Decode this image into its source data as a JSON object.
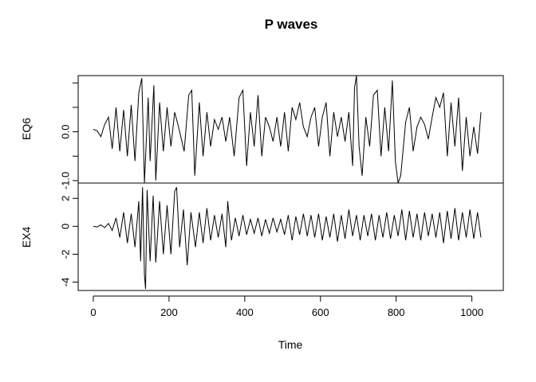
{
  "chart_data": [
    {
      "type": "line",
      "panel": "top",
      "title": "P waves",
      "ylabel": "EQ6",
      "xlim": [
        0,
        1024
      ],
      "ylim": [
        -1.05,
        1.15
      ],
      "yticks": [
        -1.0,
        -0.5,
        0.0,
        0.5,
        1.0
      ],
      "ytick_labels": [
        "-1.0",
        "",
        "0.0",
        "",
        ""
      ],
      "grid": false,
      "series": [
        {
          "color": "#000000",
          "points": [
            [
              0,
              0.05
            ],
            [
              10,
              0.02
            ],
            [
              20,
              -0.1
            ],
            [
              30,
              0.15
            ],
            [
              40,
              0.3
            ],
            [
              50,
              -0.35
            ],
            [
              60,
              0.5
            ],
            [
              70,
              -0.4
            ],
            [
              80,
              0.45
            ],
            [
              90,
              -0.5
            ],
            [
              100,
              0.55
            ],
            [
              110,
              -0.6
            ],
            [
              120,
              0.8
            ],
            [
              128,
              1.1
            ],
            [
              135,
              -1.05
            ],
            [
              145,
              0.7
            ],
            [
              150,
              -0.6
            ],
            [
              160,
              0.95
            ],
            [
              165,
              -1.0
            ],
            [
              175,
              0.6
            ],
            [
              185,
              -0.4
            ],
            [
              195,
              0.5
            ],
            [
              205,
              -0.3
            ],
            [
              215,
              0.4
            ],
            [
              225,
              0.1
            ],
            [
              240,
              -0.4
            ],
            [
              252,
              0.75
            ],
            [
              260,
              0.85
            ],
            [
              268,
              -0.9
            ],
            [
              280,
              0.6
            ],
            [
              290,
              -0.5
            ],
            [
              300,
              0.4
            ],
            [
              310,
              -0.3
            ],
            [
              320,
              0.25
            ],
            [
              330,
              0.05
            ],
            [
              340,
              0.3
            ],
            [
              350,
              -0.2
            ],
            [
              360,
              0.3
            ],
            [
              372,
              -0.5
            ],
            [
              385,
              0.7
            ],
            [
              395,
              0.85
            ],
            [
              405,
              -0.7
            ],
            [
              415,
              0.4
            ],
            [
              425,
              -0.3
            ],
            [
              435,
              0.75
            ],
            [
              445,
              -0.5
            ],
            [
              455,
              0.3
            ],
            [
              465,
              0.1
            ],
            [
              475,
              -0.2
            ],
            [
              485,
              0.3
            ],
            [
              495,
              -0.3
            ],
            [
              505,
              0.4
            ],
            [
              515,
              -0.4
            ],
            [
              525,
              0.5
            ],
            [
              535,
              0.25
            ],
            [
              545,
              0.6
            ],
            [
              555,
              0.1
            ],
            [
              565,
              -0.1
            ],
            [
              575,
              0.3
            ],
            [
              585,
              0.5
            ],
            [
              595,
              -0.3
            ],
            [
              605,
              0.3
            ],
            [
              615,
              0.6
            ],
            [
              625,
              -0.5
            ],
            [
              635,
              0.4
            ],
            [
              645,
              -0.1
            ],
            [
              655,
              0.3
            ],
            [
              665,
              -0.2
            ],
            [
              675,
              0.4
            ],
            [
              685,
              -0.7
            ],
            [
              690,
              0.9
            ],
            [
              695,
              1.15
            ],
            [
              702,
              -0.3
            ],
            [
              710,
              -0.9
            ],
            [
              720,
              0.3
            ],
            [
              730,
              -0.3
            ],
            [
              740,
              0.75
            ],
            [
              750,
              0.85
            ],
            [
              760,
              -0.5
            ],
            [
              770,
              0.5
            ],
            [
              780,
              -0.4
            ],
            [
              790,
              1.05
            ],
            [
              798,
              -0.6
            ],
            [
              805,
              -1.05
            ],
            [
              812,
              -0.9
            ],
            [
              825,
              0.2
            ],
            [
              835,
              0.5
            ],
            [
              845,
              -0.4
            ],
            [
              855,
              0.1
            ],
            [
              865,
              0.3
            ],
            [
              875,
              0.15
            ],
            [
              885,
              -0.15
            ],
            [
              895,
              0.3
            ],
            [
              905,
              0.7
            ],
            [
              915,
              0.5
            ],
            [
              925,
              0.8
            ],
            [
              935,
              -0.5
            ],
            [
              945,
              0.6
            ],
            [
              955,
              -0.3
            ],
            [
              965,
              0.7
            ],
            [
              975,
              -0.8
            ],
            [
              985,
              0.3
            ],
            [
              995,
              -0.5
            ],
            [
              1005,
              0.1
            ],
            [
              1015,
              -0.45
            ],
            [
              1024,
              0.4
            ]
          ]
        }
      ]
    },
    {
      "type": "line",
      "panel": "bottom",
      "xlabel": "Time",
      "ylabel": "EX4",
      "xlim": [
        0,
        1024
      ],
      "ylim": [
        -4.6,
        3.1
      ],
      "xticks": [
        0,
        200,
        400,
        600,
        800,
        1000
      ],
      "xtick_labels": [
        "0",
        "200",
        "400",
        "600",
        "800",
        "1000"
      ],
      "yticks": [
        -4,
        -2,
        0,
        2
      ],
      "ytick_labels": [
        "-4",
        "-2",
        "0",
        "2"
      ],
      "grid": false,
      "series": [
        {
          "color": "#000000",
          "points": [
            [
              0,
              0.0
            ],
            [
              10,
              -0.05
            ],
            [
              20,
              0.1
            ],
            [
              30,
              -0.1
            ],
            [
              40,
              0.2
            ],
            [
              50,
              -0.3
            ],
            [
              60,
              0.6
            ],
            [
              70,
              -0.8
            ],
            [
              80,
              1.0
            ],
            [
              90,
              -1.2
            ],
            [
              100,
              0.9
            ],
            [
              110,
              -1.5
            ],
            [
              120,
              1.8
            ],
            [
              125,
              -2.5
            ],
            [
              130,
              2.8
            ],
            [
              135,
              -3.5
            ],
            [
              138,
              -4.5
            ],
            [
              142,
              2.6
            ],
            [
              150,
              -2.5
            ],
            [
              158,
              2.2
            ],
            [
              165,
              -2.6
            ],
            [
              175,
              1.8
            ],
            [
              185,
              -2.0
            ],
            [
              195,
              1.5
            ],
            [
              205,
              -2.0
            ],
            [
              215,
              2.5
            ],
            [
              220,
              2.8
            ],
            [
              228,
              -1.5
            ],
            [
              238,
              1.2
            ],
            [
              248,
              -2.8
            ],
            [
              258,
              1.0
            ],
            [
              270,
              -1.5
            ],
            [
              280,
              1.0
            ],
            [
              290,
              -1.2
            ],
            [
              300,
              1.3
            ],
            [
              310,
              -1.0
            ],
            [
              320,
              0.8
            ],
            [
              330,
              -0.8
            ],
            [
              340,
              0.9
            ],
            [
              350,
              -1.5
            ],
            [
              355,
              1.8
            ],
            [
              365,
              -1.0
            ],
            [
              375,
              0.6
            ],
            [
              385,
              -0.7
            ],
            [
              395,
              0.8
            ],
            [
              405,
              -0.6
            ],
            [
              415,
              0.5
            ],
            [
              425,
              -0.5
            ],
            [
              435,
              0.6
            ],
            [
              445,
              -0.7
            ],
            [
              455,
              0.5
            ],
            [
              465,
              -0.5
            ],
            [
              475,
              0.6
            ],
            [
              485,
              -0.4
            ],
            [
              495,
              0.5
            ],
            [
              505,
              -0.6
            ],
            [
              515,
              0.8
            ],
            [
              525,
              -1.0
            ],
            [
              535,
              0.7
            ],
            [
              545,
              -0.6
            ],
            [
              555,
              0.9
            ],
            [
              565,
              -0.7
            ],
            [
              575,
              0.8
            ],
            [
              585,
              -0.8
            ],
            [
              595,
              0.9
            ],
            [
              605,
              -1.0
            ],
            [
              615,
              0.7
            ],
            [
              625,
              -0.8
            ],
            [
              635,
              0.9
            ],
            [
              645,
              -1.1
            ],
            [
              655,
              0.8
            ],
            [
              665,
              -0.9
            ],
            [
              675,
              1.2
            ],
            [
              685,
              -0.7
            ],
            [
              695,
              0.8
            ],
            [
              705,
              -1.0
            ],
            [
              715,
              0.8
            ],
            [
              725,
              -0.7
            ],
            [
              735,
              0.9
            ],
            [
              745,
              -1.0
            ],
            [
              755,
              0.8
            ],
            [
              765,
              -0.8
            ],
            [
              775,
              1.0
            ],
            [
              785,
              -0.9
            ],
            [
              795,
              0.8
            ],
            [
              805,
              -0.7
            ],
            [
              815,
              1.2
            ],
            [
              825,
              -1.0
            ],
            [
              835,
              1.1
            ],
            [
              845,
              -0.8
            ],
            [
              855,
              0.9
            ],
            [
              865,
              -1.0
            ],
            [
              875,
              1.0
            ],
            [
              885,
              -0.7
            ],
            [
              895,
              0.9
            ],
            [
              905,
              -0.8
            ],
            [
              915,
              1.0
            ],
            [
              925,
              -1.2
            ],
            [
              935,
              1.1
            ],
            [
              945,
              -0.9
            ],
            [
              955,
              1.3
            ],
            [
              965,
              -1.0
            ],
            [
              975,
              1.0
            ],
            [
              985,
              -0.8
            ],
            [
              995,
              1.2
            ],
            [
              1005,
              -0.9
            ],
            [
              1015,
              1.0
            ],
            [
              1024,
              -0.8
            ]
          ]
        }
      ]
    }
  ]
}
